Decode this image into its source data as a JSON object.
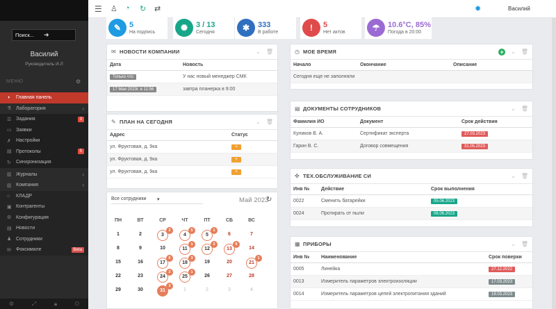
{
  "sidebar": {
    "search_placeholder": "Поиск...",
    "user_name": "Василий",
    "user_role": "Руководитель И.Л",
    "menu_label": "МЕНЮ",
    "items": [
      {
        "label": "Главная панель",
        "icon": "dashboard-icon",
        "active": true
      },
      {
        "label": "Лаборатория",
        "icon": "flask-icon",
        "arrow": true
      },
      {
        "label": "Задания",
        "icon": "list-icon",
        "badge": "3"
      },
      {
        "label": "Заявки",
        "icon": "document-icon"
      },
      {
        "label": "Настройки",
        "icon": "tools-icon"
      },
      {
        "label": "Протоколы",
        "icon": "protocol-icon",
        "badge": "5"
      },
      {
        "label": "Синхронизация",
        "icon": "sync-icon"
      },
      {
        "label": "Журналы",
        "icon": "journal-icon",
        "arrow": true
      },
      {
        "label": "Компания",
        "icon": "company-icon",
        "arrow": true
      },
      {
        "label": "КЛАДР",
        "icon": "address-icon"
      },
      {
        "label": "Контрагенты",
        "icon": "contacts-icon"
      },
      {
        "label": "Конфигурация",
        "icon": "config-icon"
      },
      {
        "label": "Новости",
        "icon": "news-icon"
      },
      {
        "label": "Сотрудники",
        "icon": "staff-icon"
      },
      {
        "label": "Фоксимиле",
        "icon": "fax-icon",
        "badge": "Beta"
      }
    ]
  },
  "topbar": {
    "user_name": "Василий"
  },
  "stats": [
    {
      "value": "5",
      "caption": "На подпись",
      "color": "#1e9be2",
      "icon": "pen-icon",
      "glyph": "✎"
    },
    {
      "value": "3 / 13",
      "caption": "Сегодня",
      "color": "#18a689",
      "icon": "virus-icon",
      "glyph": "✺"
    },
    {
      "value": "333",
      "caption": "В работе",
      "color": "#2f6fbf",
      "icon": "bug-icon",
      "glyph": "✱"
    },
    {
      "value": "5",
      "caption": "Нет актов",
      "color": "#e04a4a",
      "icon": "exclamation-icon",
      "glyph": "!"
    },
    {
      "value": "10.6°C, 85%",
      "caption": "Погода в 20:00",
      "color": "#9b6bd3",
      "icon": "umbrella-icon",
      "glyph": "☂"
    }
  ],
  "news": {
    "title": "НОВОСТИ КОМПАНИИ",
    "columns": [
      "Дата",
      "Новость"
    ],
    "rows": [
      {
        "date": "Только что",
        "text": "У нас новый менеджер СМК"
      },
      {
        "date": "17 Мая 2023г. в 11:56",
        "text": "завтра планерка в 9:00"
      }
    ]
  },
  "plan": {
    "title": "ПЛАН НА СЕГОДНЯ",
    "columns": [
      "Адрес",
      "Статус"
    ],
    "rows": [
      {
        "address": "ул. Фруктовая, д. 9ка",
        "status": "+"
      },
      {
        "address": "ул. Фруктовая, д. 9ка",
        "status": "+"
      },
      {
        "address": "ул. Фруктовая, д. 9ка",
        "status": "+"
      }
    ]
  },
  "calendar": {
    "filter": "Все сотрудники",
    "month": "Май 2023",
    "weekdays": [
      "ПН",
      "ВТ",
      "СР",
      "ЧТ",
      "ПТ",
      "СБ",
      "ВС"
    ],
    "weeks": [
      [
        {
          "d": "1"
        },
        {
          "d": "2"
        },
        {
          "d": "3",
          "ring": true,
          "count": "2"
        },
        {
          "d": "4",
          "ring": true,
          "count": "5"
        },
        {
          "d": "5",
          "ring": true,
          "count": "1"
        },
        {
          "d": "6",
          "red": true
        },
        {
          "d": "7",
          "red": true
        }
      ],
      [
        {
          "d": "8"
        },
        {
          "d": "9"
        },
        {
          "d": "10"
        },
        {
          "d": "11",
          "ring": true,
          "count": "1"
        },
        {
          "d": "12",
          "ring": true,
          "count": "2"
        },
        {
          "d": "13",
          "ring": true,
          "red": true,
          "count": "6"
        },
        {
          "d": "14",
          "red": true
        }
      ],
      [
        {
          "d": "15"
        },
        {
          "d": "16"
        },
        {
          "d": "17",
          "ring": true,
          "count": "6"
        },
        {
          "d": "18",
          "ring": true,
          "count": "3"
        },
        {
          "d": "19"
        },
        {
          "d": "20",
          "red": true
        },
        {
          "d": "21",
          "ring": true,
          "red": true,
          "count": "1"
        }
      ],
      [
        {
          "d": "22"
        },
        {
          "d": "23"
        },
        {
          "d": "24",
          "ring": true,
          "count": "2"
        },
        {
          "d": "25",
          "ring": true,
          "count": "1"
        },
        {
          "d": "26"
        },
        {
          "d": "27",
          "red": true
        },
        {
          "d": "28",
          "red": true
        }
      ],
      [
        {
          "d": "29"
        },
        {
          "d": "30"
        },
        {
          "d": "31",
          "ring": true,
          "fill": true,
          "count": "3"
        },
        {
          "d": "1",
          "muted": true
        },
        {
          "d": "2",
          "muted": true
        },
        {
          "d": "3",
          "muted": true
        },
        {
          "d": "4",
          "muted": true
        }
      ]
    ]
  },
  "mytime": {
    "title": "МОЕ ВРЕМЯ",
    "columns": [
      "Начало",
      "Окончание",
      "Описание"
    ],
    "empty": "Сегодня еще не заполняли"
  },
  "docs": {
    "title": "ДОКУМЕНТЫ СОТРУДНИКОВ",
    "columns": [
      "Фамилия ИО",
      "Документ",
      "Срок действия"
    ],
    "rows": [
      {
        "name": "Куликов В. А.",
        "doc": "Сертификат эксперта",
        "date": "27.03.2023"
      },
      {
        "name": "Гарин В. С.",
        "doc": "Договор совмещения",
        "date": "31.05.2023"
      }
    ]
  },
  "service": {
    "title": "ТЕХ.ОБСЛУЖИВАНИЕ СИ",
    "columns": [
      "Инв №",
      "Действие",
      "Срок выполнения"
    ],
    "rows": [
      {
        "inv": "0022",
        "action": "Сменить батарейки",
        "date": "05.06.2023"
      },
      {
        "inv": "0024",
        "action": "Протирать от пыли",
        "date": "06.06.2023"
      }
    ]
  },
  "devices": {
    "title": "ПРИБОРЫ",
    "columns": [
      "Инв №",
      "Наименование",
      "Срок поверки"
    ],
    "rows": [
      {
        "inv": "0005",
        "name": "Линейка",
        "date": "27.12.2022",
        "tag": "red"
      },
      {
        "inv": "0013",
        "name": "Измеритель параметров электроизоляции",
        "date": "17.03.2023",
        "tag": "darkgray"
      },
      {
        "inv": "0014",
        "name": "Измеритель параметров цепей электропитания зданий",
        "date": "19.03.2023",
        "tag": "darkgray"
      }
    ]
  }
}
